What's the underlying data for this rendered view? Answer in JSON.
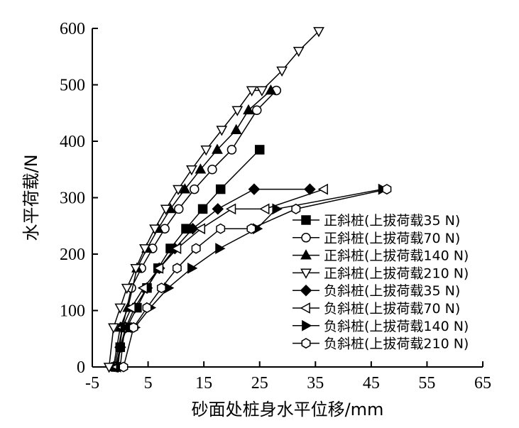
{
  "chart_data": {
    "type": "line",
    "title": "",
    "xlabel": "砂面处桩身水平位移/mm",
    "ylabel": "水平荷载/N",
    "xlim": [
      -5,
      65
    ],
    "ylim": [
      0,
      600
    ],
    "xticks": [
      -5,
      5,
      15,
      25,
      35,
      45,
      55,
      65
    ],
    "yticks": [
      0,
      100,
      200,
      300,
      400,
      500,
      600
    ],
    "grid": false,
    "legend_position": "lower-right",
    "series": [
      {
        "name": "正斜桩(上拔荷载35 N)",
        "marker": "square-filled",
        "x": [
          -0.8,
          0,
          1.2,
          3.0,
          4.8,
          6.8,
          9.0,
          11.8,
          14.8,
          18.0,
          25.0
        ],
        "y": [
          0,
          35,
          70,
          105,
          140,
          175,
          210,
          245,
          280,
          315,
          385
        ]
      },
      {
        "name": "正斜桩(上拔荷载70 N)",
        "marker": "circle-open",
        "x": [
          -1.0,
          0.4,
          2.0,
          3.8,
          5.8,
          8.0,
          10.5,
          13.3,
          16.5,
          20.0,
          24.5,
          28.0
        ],
        "y": [
          0,
          70,
          140,
          175,
          210,
          245,
          280,
          315,
          350,
          385,
          455,
          490
        ]
      },
      {
        "name": "正斜桩(上拔荷载140 N)",
        "marker": "triangle-up-filled",
        "x": [
          -1.2,
          0,
          1.4,
          3.0,
          4.8,
          6.8,
          9.0,
          11.6,
          14.4,
          17.4,
          20.8,
          23.0,
          27.0
        ],
        "y": [
          0,
          70,
          105,
          175,
          210,
          245,
          280,
          315,
          350,
          385,
          420,
          455,
          490
        ]
      },
      {
        "name": "正斜桩(上拔荷载210 N)",
        "marker": "triangle-down-open",
        "x": [
          -2.0,
          -1.2,
          0,
          1.2,
          2.8,
          4.4,
          6.2,
          8.2,
          10.4,
          12.8,
          15.4,
          18.2,
          21.0,
          23.6,
          25.4,
          29.0,
          32.0,
          35.6
        ],
        "y": [
          0,
          70,
          105,
          140,
          175,
          210,
          245,
          280,
          315,
          350,
          385,
          420,
          455,
          490,
          490,
          525,
          560,
          595
        ]
      },
      {
        "name": "负斜桩(上拔荷载35 N)",
        "marker": "diamond-filled",
        "x": [
          -0.4,
          0,
          1.0,
          2.6,
          4.8,
          7.0,
          9.8,
          13.0,
          17.5,
          24.0,
          34.0
        ],
        "y": [
          0,
          35,
          70,
          105,
          140,
          175,
          210,
          245,
          280,
          315,
          315
        ]
      },
      {
        "name": "负斜桩(上拔荷载70 N)",
        "marker": "triangle-left-open",
        "x": [
          -0.6,
          0.4,
          2.0,
          4.2,
          7.0,
          10.2,
          14.5,
          20.0,
          26.0,
          36.5
        ],
        "y": [
          0,
          70,
          105,
          140,
          175,
          210,
          245,
          280,
          280,
          315
        ]
      },
      {
        "name": "负斜桩(上拔荷载140 N)",
        "marker": "triangle-right-filled",
        "x": [
          0,
          0.8,
          2.6,
          5.4,
          8.6,
          12.8,
          17.8,
          24.5,
          28.0,
          47.0
        ],
        "y": [
          0,
          70,
          70,
          105,
          140,
          175,
          210,
          245,
          280,
          315
        ]
      },
      {
        "name": "负斜桩(上拔荷载210 N)",
        "marker": "hexagon-open",
        "x": [
          0.6,
          2.4,
          4.8,
          7.4,
          10.2,
          13.6,
          18.0,
          23.5,
          31.5,
          47.8
        ],
        "y": [
          0,
          70,
          105,
          140,
          175,
          210,
          245,
          245,
          280,
          315
        ]
      }
    ]
  }
}
